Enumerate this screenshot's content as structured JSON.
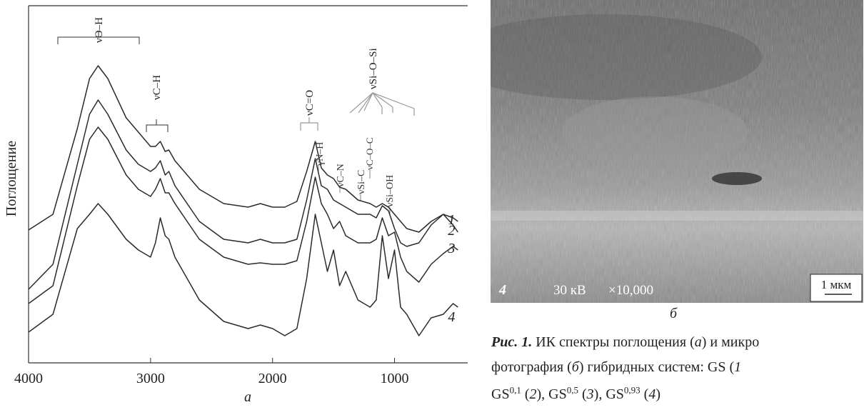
{
  "chart_data": {
    "type": "line",
    "y_label": "Поглощение",
    "x_label": "а",
    "x": [
      4000,
      3800,
      3600,
      3500,
      3430,
      3350,
      3200,
      3100,
      3000,
      2960,
      2920,
      2880,
      2850,
      2800,
      2600,
      2400,
      2200,
      2100,
      2000,
      1900,
      1800,
      1720,
      1650,
      1600,
      1550,
      1500,
      1450,
      1400,
      1300,
      1200,
      1150,
      1100,
      1050,
      1000,
      950,
      900,
      800,
      700,
      600,
      520,
      480
    ],
    "xlim": [
      4000,
      400
    ],
    "xticks": [
      4000,
      3000,
      2000,
      1000
    ],
    "ylim": [
      0,
      100
    ],
    "series": [
      {
        "name": "1",
        "color": "#2a2a2a",
        "values": [
          37.2,
          41.6,
          65.6,
          79.6,
          83.2,
          79.6,
          68.6,
          64.6,
          60.6,
          60.6,
          62,
          59.2,
          59.6,
          56.6,
          48.6,
          44.6,
          43.6,
          44.6,
          43.6,
          43.6,
          45.2,
          53.6,
          62,
          54.6,
          52.6,
          51.6,
          49.2,
          48.6,
          45.6,
          44.6,
          43.6,
          44.6,
          43.6,
          41.6,
          39.6,
          37.6,
          36.6,
          39.6,
          41.6,
          40.6,
          39.6
        ]
      },
      {
        "name": "2",
        "color": "#2a2a2a",
        "values": [
          20.6,
          27.6,
          55.6,
          69.6,
          73.6,
          69.6,
          59.6,
          55.6,
          53.6,
          54.6,
          56.6,
          52.6,
          53.6,
          49.6,
          39.6,
          34.6,
          33.6,
          34.6,
          33.6,
          33.6,
          34.6,
          45.6,
          57.2,
          49.6,
          48.6,
          45.6,
          44.6,
          43.6,
          41.6,
          41.6,
          40.6,
          44,
          42.6,
          37.6,
          33.6,
          32.6,
          33.6,
          38.6,
          41.6,
          38.6,
          36.6
        ]
      },
      {
        "name": "3",
        "color": "#2a2a2a",
        "values": [
          16.6,
          21.6,
          49.6,
          62.6,
          66,
          62.6,
          52.6,
          48.6,
          46.6,
          48.6,
          51.6,
          47.6,
          47.6,
          44.6,
          34.6,
          29.6,
          27.6,
          28,
          27.6,
          27.6,
          28.6,
          39.6,
          52,
          44.6,
          41.6,
          37.6,
          39.6,
          35.6,
          33.6,
          33.6,
          34.6,
          40.6,
          35.6,
          36.6,
          29.6,
          25.6,
          22.6,
          27.6,
          30.6,
          32.6,
          31.6
        ]
      },
      {
        "name": "4",
        "color": "#2a2a2a",
        "values": [
          8.6,
          13.6,
          37.6,
          41.6,
          44.6,
          41.6,
          34.6,
          31.6,
          29.6,
          33.6,
          40.6,
          35.6,
          34.6,
          29.6,
          17.6,
          11.6,
          9.6,
          10.6,
          9.6,
          7.6,
          9.6,
          23.6,
          41.6,
          33.6,
          25.6,
          31.6,
          21.6,
          25.6,
          17.6,
          15.6,
          17.6,
          35.6,
          23.6,
          31.6,
          15.6,
          13.6,
          7.6,
          12.6,
          13.6,
          16.6,
          15.6
        ]
      }
    ],
    "annotations": [
      "νO–H",
      "νC–H",
      "νC=O",
      "γN–H",
      "νC–N",
      "νSi–C",
      "νC–O–C",
      "νSi–O–Si",
      "νSi–OH"
    ]
  },
  "image": {
    "panel": "4",
    "voltage": "30 кВ",
    "magnification": "×10,000",
    "scale_bar": "1 мкм",
    "label": "б"
  },
  "caption": {
    "label": "Рис. 1.",
    "lines": [
      [
        {
          "t": " ИК спектры поглощения ("
        },
        {
          "t": "а",
          "i": true
        },
        {
          "t": ") и микро"
        }
      ],
      [
        {
          "t": "фотография ("
        },
        {
          "t": "б",
          "i": true
        },
        {
          "t": ") гибридных систем: GS ("
        },
        {
          "t": "1",
          "i": true
        }
      ],
      [
        {
          "t": "GS"
        },
        {
          "t": "0,1",
          "sup": true
        },
        {
          "t": " ("
        },
        {
          "t": "2",
          "i": true
        },
        {
          "t": "), GS"
        },
        {
          "t": "0,5",
          "sup": true
        },
        {
          "t": " ("
        },
        {
          "t": "3",
          "i": true
        },
        {
          "t": "), GS"
        },
        {
          "t": "0,93",
          "sup": true
        },
        {
          "t": " ("
        },
        {
          "t": "4",
          "i": true
        },
        {
          "t": ")"
        }
      ]
    ]
  }
}
